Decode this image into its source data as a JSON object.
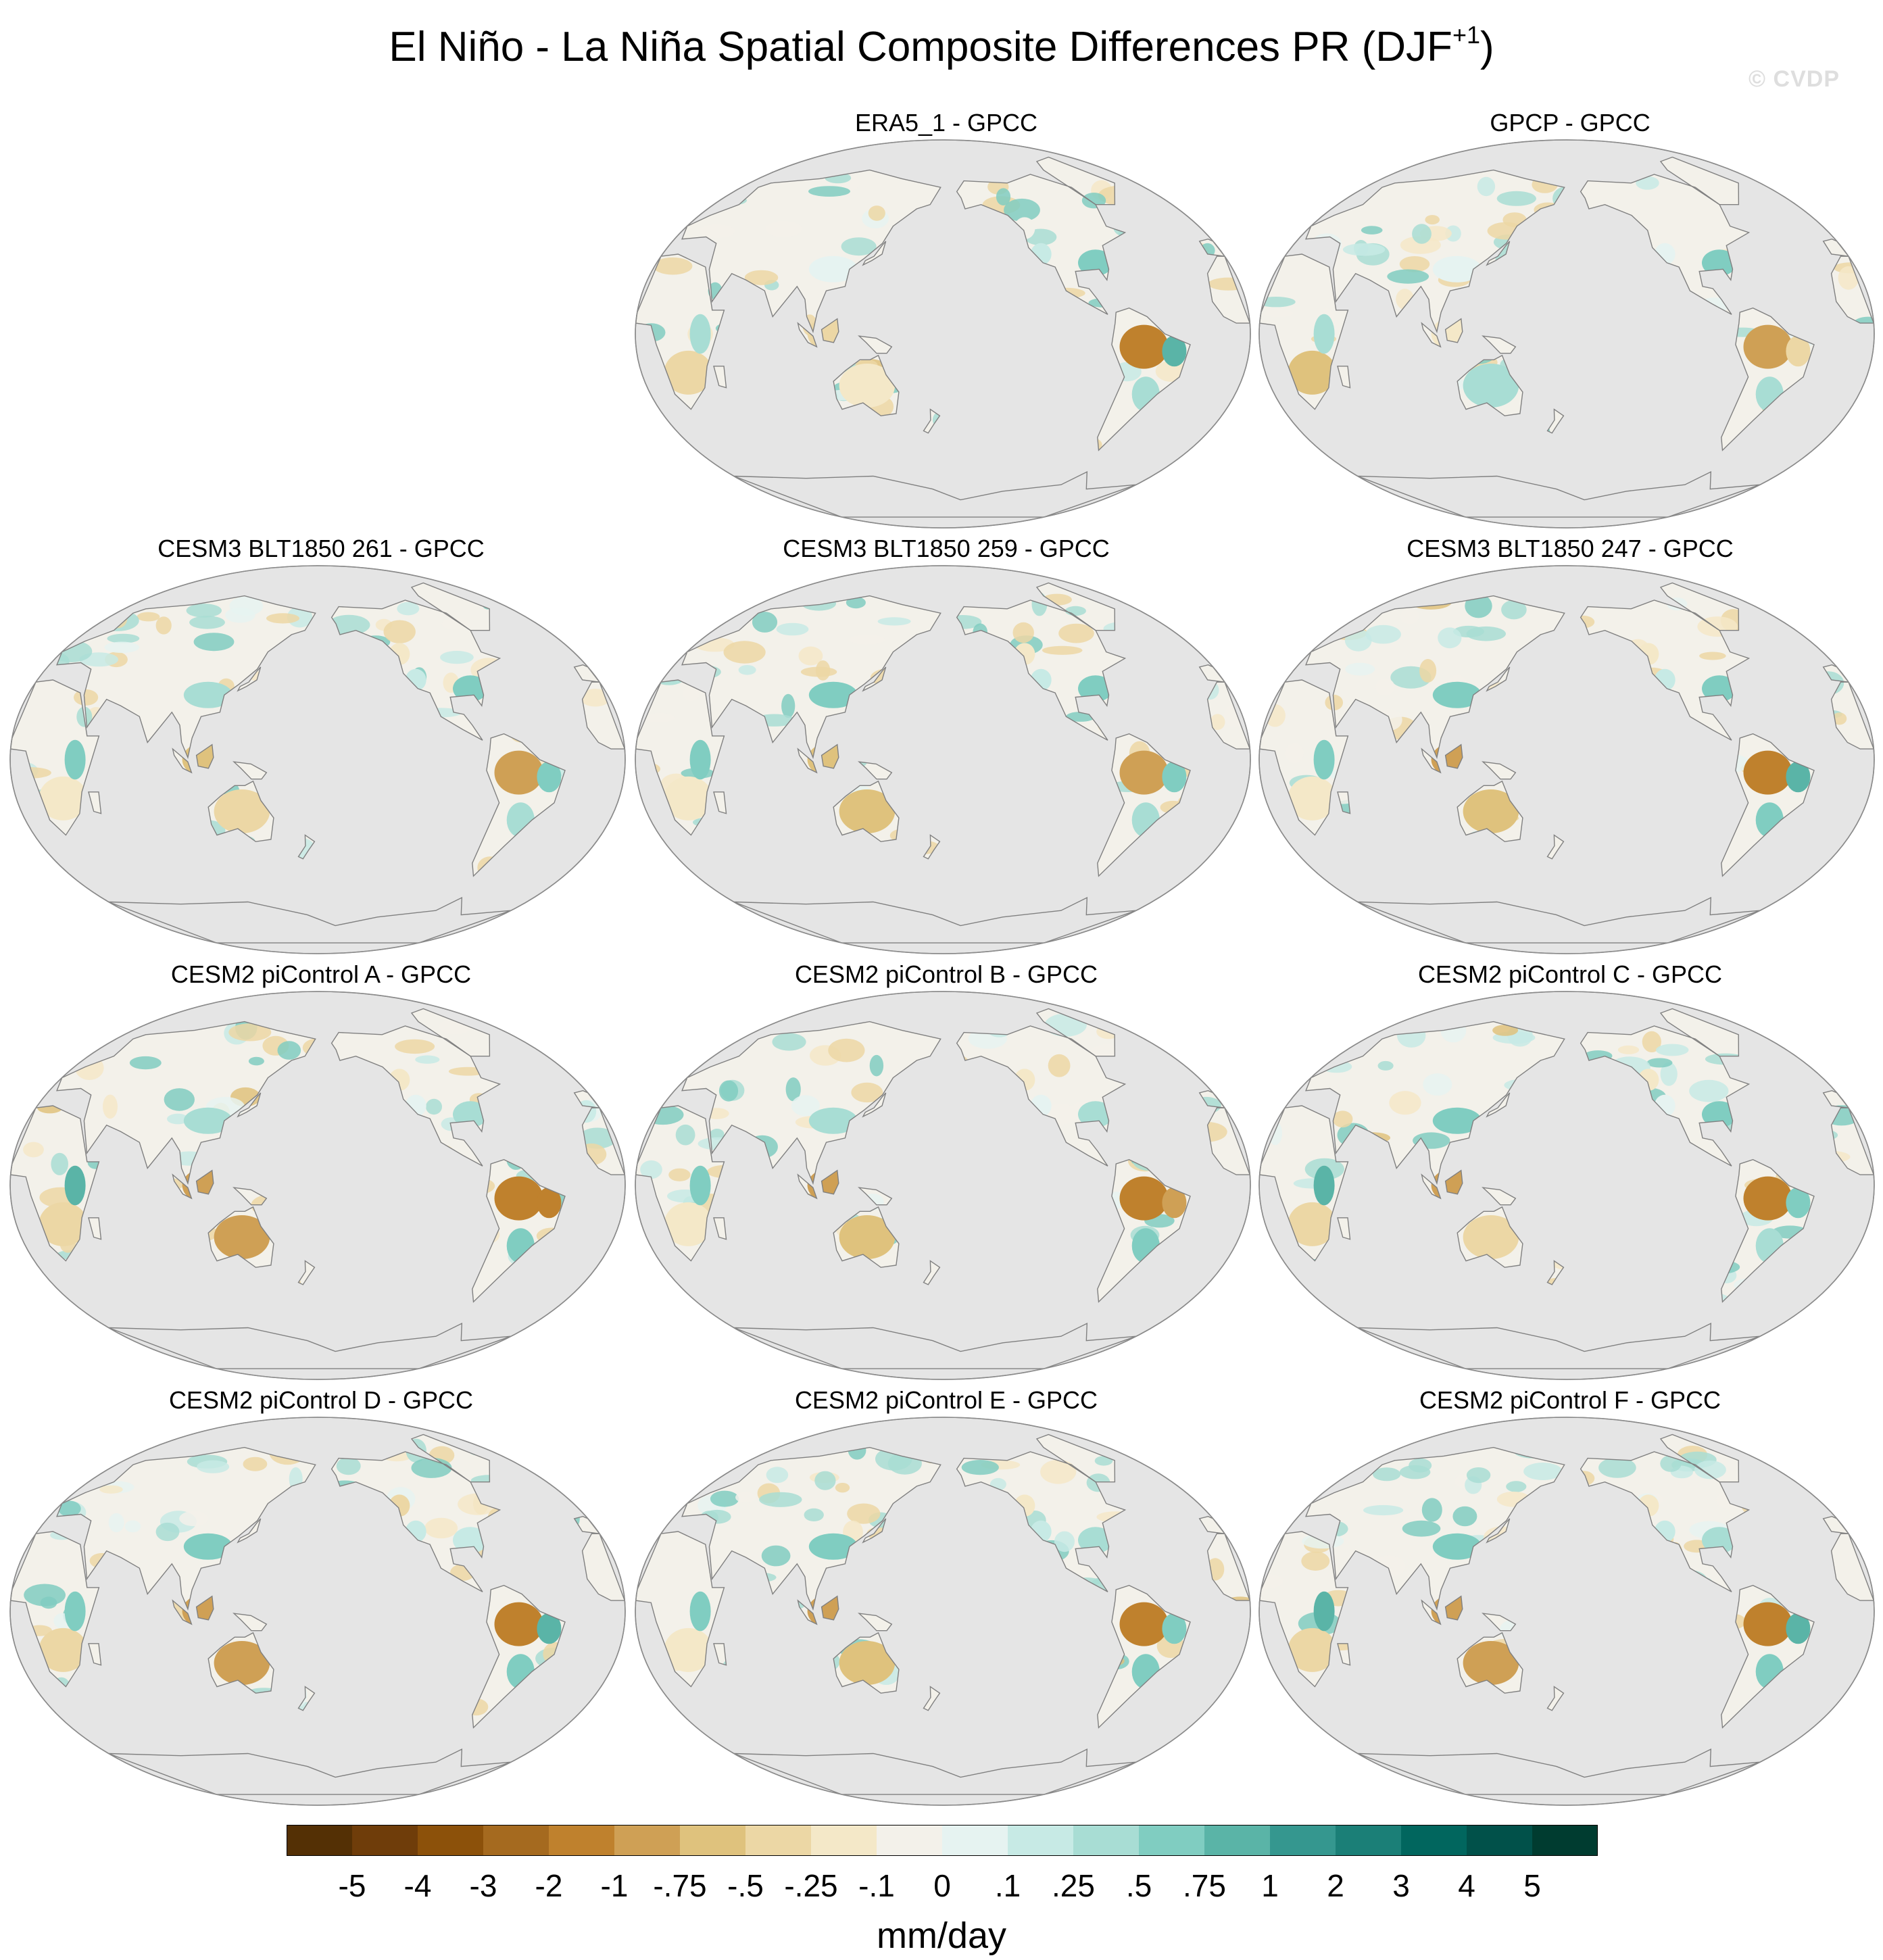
{
  "title": {
    "main": "El Niño - La Niña Spatial Composite Differences PR (DJF",
    "superscript": "+1",
    "close": ")"
  },
  "watermark": "© CVDP",
  "panels": [
    {
      "title": "ERA5_1 - GPCC",
      "row": 0,
      "col": 1,
      "seed": 3,
      "anomalies": {
        "amazon": -3.5,
        "ne_brazil": 2.5,
        "southern_africa": -1.5,
        "east_africa": 1.0,
        "australia": -0.5,
        "maritime": -1.0,
        "us_southeast": 1.5,
        "west_us": 0.5,
        "china": 0.2,
        "pacific_nw": -0.3,
        "se_south_america": 1.0
      }
    },
    {
      "title": "GPCP - GPCC",
      "row": 0,
      "col": 2,
      "seed": 7,
      "anomalies": {
        "amazon": -3.0,
        "ne_brazil": -1.0,
        "southern_africa": -2.0,
        "east_africa": 1.0,
        "australia": 0.8,
        "maritime": -0.5,
        "us_southeast": 1.5,
        "west_us": 0.3,
        "china": 0.3,
        "pacific_nw": -0.2,
        "se_south_america": 1.0
      }
    },
    {
      "title": "CESM3 BLT1850 261 - GPCC",
      "row": 1,
      "col": 0,
      "seed": 11,
      "anomalies": {
        "amazon": -2.5,
        "ne_brazil": 2.0,
        "southern_africa": -0.5,
        "east_africa": 2.0,
        "australia": -1.5,
        "maritime": -2.0,
        "us_southeast": 1.5,
        "west_us": 0.5,
        "china": 1.0,
        "pacific_nw": -0.5,
        "se_south_america": 1.0
      }
    },
    {
      "title": "CESM3 BLT1850 259 - GPCC",
      "row": 1,
      "col": 1,
      "seed": 13,
      "anomalies": {
        "amazon": -3.0,
        "ne_brazil": 1.5,
        "southern_africa": -0.5,
        "east_africa": 2.0,
        "australia": -2.0,
        "maritime": -2.0,
        "us_southeast": 2.0,
        "west_us": 0.5,
        "china": 1.5,
        "pacific_nw": -0.5,
        "se_south_america": 1.0
      }
    },
    {
      "title": "CESM3 BLT1850 247 - GPCC",
      "row": 1,
      "col": 2,
      "seed": 17,
      "anomalies": {
        "amazon": -3.5,
        "ne_brazil": 2.5,
        "southern_africa": -0.5,
        "east_africa": 2.0,
        "australia": -2.0,
        "maritime": -2.5,
        "us_southeast": 2.0,
        "west_us": 0.5,
        "china": 1.5,
        "pacific_nw": -0.5,
        "se_south_america": 1.5
      }
    },
    {
      "title": "CESM2 piControl A - GPCC",
      "row": 2,
      "col": 0,
      "seed": 19,
      "anomalies": {
        "amazon": -4.0,
        "ne_brazil": -3.5,
        "southern_africa": -1.0,
        "east_africa": 2.5,
        "australia": -2.5,
        "maritime": -3.0,
        "us_southeast": 1.0,
        "west_us": 0.3,
        "china": 1.0,
        "pacific_nw": -0.5,
        "se_south_america": 1.5
      }
    },
    {
      "title": "CESM2 piControl B - GPCC",
      "row": 2,
      "col": 1,
      "seed": 23,
      "anomalies": {
        "amazon": -4.0,
        "ne_brazil": -2.5,
        "southern_africa": -0.5,
        "east_africa": 2.0,
        "australia": -2.0,
        "maritime": -2.5,
        "us_southeast": 1.0,
        "west_us": 0.3,
        "china": 1.0,
        "pacific_nw": -0.5,
        "se_south_america": 1.5
      }
    },
    {
      "title": "CESM2 piControl C - GPCC",
      "row": 2,
      "col": 2,
      "seed": 29,
      "anomalies": {
        "amazon": -3.5,
        "ne_brazil": 2.0,
        "southern_africa": -1.0,
        "east_africa": 2.5,
        "australia": -1.5,
        "maritime": -2.5,
        "us_southeast": 1.5,
        "west_us": 0.3,
        "china": 1.5,
        "pacific_nw": -0.5,
        "se_south_america": 1.0
      }
    },
    {
      "title": "CESM2 piControl D - GPCC",
      "row": 3,
      "col": 0,
      "seed": 31,
      "anomalies": {
        "amazon": -4.0,
        "ne_brazil": 2.5,
        "southern_africa": -1.0,
        "east_africa": 2.0,
        "australia": -2.5,
        "maritime": -2.5,
        "us_southeast": 0.5,
        "west_us": 0.5,
        "china": 1.5,
        "pacific_nw": -1.0,
        "se_south_america": 1.5
      }
    },
    {
      "title": "CESM2 piControl E - GPCC",
      "row": 3,
      "col": 1,
      "seed": 37,
      "anomalies": {
        "amazon": -4.5,
        "ne_brazil": 2.0,
        "southern_africa": -0.5,
        "east_africa": 2.0,
        "australia": -2.0,
        "maritime": -2.5,
        "us_southeast": 1.0,
        "west_us": 0.5,
        "china": 1.5,
        "pacific_nw": -0.5,
        "se_south_america": 1.5
      }
    },
    {
      "title": "CESM2 piControl F - GPCC",
      "row": 3,
      "col": 2,
      "seed": 41,
      "anomalies": {
        "amazon": -3.5,
        "ne_brazil": 2.5,
        "southern_africa": -1.0,
        "east_africa": 2.5,
        "australia": -3.0,
        "maritime": -2.5,
        "us_southeast": 1.0,
        "west_us": 0.5,
        "china": 1.5,
        "pacific_nw": -0.5,
        "se_south_america": 1.5
      }
    }
  ],
  "colorbar": {
    "unit": "mm/day",
    "labels": [
      "-5",
      "-4",
      "-3",
      "-2",
      "-1",
      "-.75",
      "-.5",
      "-.25",
      "-.1",
      "0",
      ".1",
      ".25",
      ".5",
      ".75",
      "1",
      "2",
      "3",
      "4",
      "5"
    ],
    "boundaries": [
      -5,
      -4,
      -3,
      -2,
      -1,
      -0.75,
      -0.5,
      -0.25,
      -0.1,
      0,
      0.1,
      0.25,
      0.5,
      0.75,
      1,
      2,
      3,
      4,
      5
    ],
    "colors": [
      "#543005",
      "#6f3d0a",
      "#8c510a",
      "#a56a1f",
      "#bf812d",
      "#cfa055",
      "#dfc27d",
      "#ecd7a5",
      "#f4e8c8",
      "#f3f1ea",
      "#e6f3f1",
      "#c7eae5",
      "#a8ddd4",
      "#80cdc1",
      "#5ab4a7",
      "#35978f",
      "#1b7f77",
      "#01665e",
      "#01514a",
      "#003c30"
    ]
  },
  "map_style": {
    "ocean": "#e5e5e5",
    "coast": "#808080",
    "neutral_land": "#f3f1ea"
  }
}
